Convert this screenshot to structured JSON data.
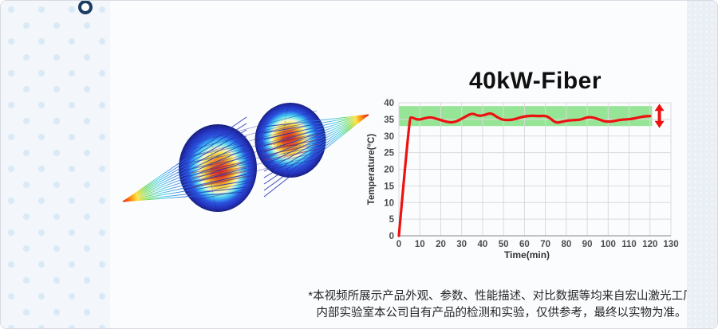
{
  "slide": {
    "background": "#fbfcfe",
    "left_strip_dot_color": "#d9eaf7",
    "pin_color": "#1b3c63",
    "right_strip_color": "#eaeef5"
  },
  "figure": {
    "label": "laser-beam-through-two-lenses-simulation",
    "colormap": [
      "#2636b8",
      "#2a6ae0",
      "#35c8e8",
      "#58d858",
      "#ffe02a",
      "#ff7800",
      "#e01000"
    ]
  },
  "chart_data": {
    "type": "line",
    "title": "40kW-Fiber",
    "xlabel": "Time(min)",
    "ylabel": "Temperature(°C)",
    "xlim": [
      0,
      130
    ],
    "ylim": [
      0,
      40
    ],
    "xticks": [
      0,
      10,
      20,
      30,
      40,
      50,
      60,
      70,
      80,
      90,
      100,
      110,
      120,
      130
    ],
    "yticks": [
      0,
      5,
      10,
      15,
      20,
      25,
      30,
      35,
      40
    ],
    "grid": true,
    "legend": "none",
    "band": {
      "y_min": 33,
      "y_max": 39,
      "x_min": 0,
      "x_max": 121,
      "color": "#96e596"
    },
    "series": [
      {
        "name": "40kW-Fiber temperature",
        "color": "#ec1210",
        "width": 3.2,
        "points": [
          [
            0,
            0
          ],
          [
            5,
            35.3
          ],
          [
            6,
            35.7
          ],
          [
            9,
            34.8
          ],
          [
            12,
            35.3
          ],
          [
            15,
            35.7
          ],
          [
            18,
            35.2
          ],
          [
            22,
            34.4
          ],
          [
            25,
            34.0
          ],
          [
            28,
            34.5
          ],
          [
            32,
            35.9
          ],
          [
            35,
            36.9
          ],
          [
            38,
            36.0
          ],
          [
            41,
            36.3
          ],
          [
            44,
            37.0
          ],
          [
            47,
            35.6
          ],
          [
            50,
            34.8
          ],
          [
            54,
            34.8
          ],
          [
            58,
            35.6
          ],
          [
            61,
            36.0
          ],
          [
            64,
            36.1
          ],
          [
            67,
            36.0
          ],
          [
            70,
            36.1
          ],
          [
            72,
            35.5
          ],
          [
            75,
            33.9
          ],
          [
            78,
            34.3
          ],
          [
            81,
            34.7
          ],
          [
            84,
            34.8
          ],
          [
            87,
            34.9
          ],
          [
            90,
            35.7
          ],
          [
            93,
            35.6
          ],
          [
            96,
            34.9
          ],
          [
            99,
            34.3
          ],
          [
            102,
            34.4
          ],
          [
            105,
            34.8
          ],
          [
            108,
            35.0
          ],
          [
            111,
            35.1
          ],
          [
            114,
            35.5
          ],
          [
            117,
            35.9
          ],
          [
            120,
            36.0
          ]
        ]
      }
    ],
    "annotation": {
      "type": "double-arrow",
      "x": 124.5,
      "y_top": 39.7,
      "y_bottom": 32.4,
      "color": "#ec1210"
    },
    "style": {
      "grid_color": "#dadada",
      "axis_color": "#9f9f9f",
      "tick_color": "#4d4d4d"
    }
  },
  "footnote": {
    "line1": "*本视频所展示产品外观、参数、性能描述、对比数据等均来自宏山激光工厂",
    "line2": "内部实验室本公司自有产品的检测和实验，仅供参考，最终以实物为准。"
  }
}
